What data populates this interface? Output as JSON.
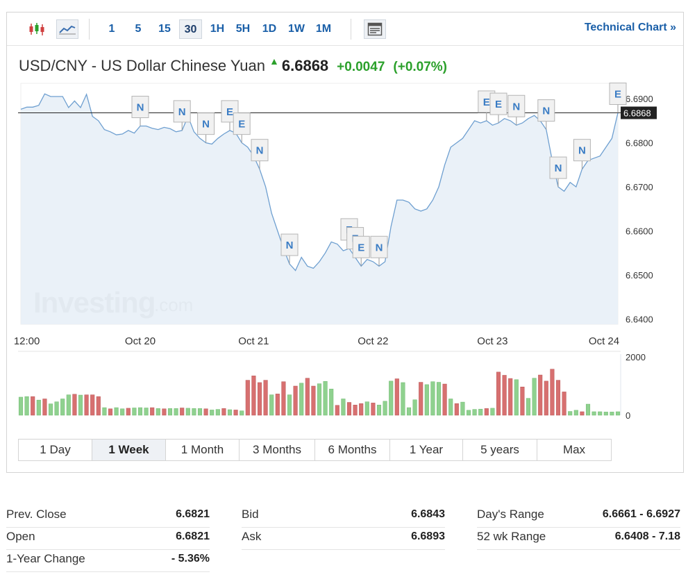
{
  "toolbar": {
    "candle_icon": "candlestick-icon",
    "line_icon": "line-chart-icon",
    "timeframes": [
      "1",
      "5",
      "15",
      "30",
      "1H",
      "5H",
      "1D",
      "1W",
      "1M"
    ],
    "active_timeframe": "30",
    "table_icon": "table-icon",
    "technical_link": "Technical Chart »"
  },
  "quote": {
    "name": "USD/CNY - US Dollar Chinese Yuan",
    "direction_icon": "up-arrow-icon",
    "price": "6.6868",
    "change": "+0.0047",
    "change_pct": "(+0.07%)"
  },
  "watermark": {
    "brand": "Investing",
    "suffix": ".com"
  },
  "chart_data": {
    "type": "area",
    "y_ticks": [
      "6.6900",
      "6.6800",
      "6.6700",
      "6.6600",
      "6.6500",
      "6.6400"
    ],
    "y_tick_values": [
      6.69,
      6.68,
      6.67,
      6.66,
      6.65,
      6.64
    ],
    "ylim": [
      6.6388,
      6.6935
    ],
    "current_value": 6.6868,
    "current_label": "6.6868",
    "x_ticks": [
      "12:00",
      "Oct 20",
      "Oct 21",
      "Oct 22",
      "Oct 23",
      "Oct 24"
    ],
    "x_tick_index": [
      1,
      20,
      39,
      59,
      79,
      99
    ],
    "values": [
      6.6876,
      6.6881,
      6.6881,
      6.6885,
      6.6911,
      6.6905,
      6.6905,
      6.6905,
      6.688,
      6.6895,
      6.688,
      6.691,
      6.686,
      6.685,
      6.683,
      6.6825,
      6.6818,
      6.682,
      6.6828,
      6.6822,
      6.6838,
      6.6838,
      6.6833,
      6.683,
      6.6835,
      6.6832,
      6.6825,
      6.6828,
      6.686,
      6.6825,
      6.681,
      6.68,
      6.6797,
      6.681,
      6.682,
      6.6828,
      6.6822,
      6.68,
      6.679,
      6.677,
      6.674,
      6.67,
      6.664,
      6.66,
      6.656,
      6.6525,
      6.651,
      6.654,
      6.652,
      6.6515,
      6.653,
      6.655,
      6.6575,
      6.657,
      6.6555,
      6.656,
      6.654,
      6.652,
      6.6535,
      6.653,
      6.652,
      6.653,
      6.661,
      6.667,
      6.667,
      6.6665,
      6.665,
      6.6645,
      6.665,
      6.667,
      6.67,
      6.675,
      6.679,
      6.68,
      6.681,
      6.683,
      6.685,
      6.6845,
      6.685,
      6.684,
      6.6845,
      6.6855,
      6.685,
      6.684,
      6.6845,
      6.6855,
      6.6862,
      6.685,
      6.683,
      6.676,
      6.67,
      6.669,
      6.671,
      6.67,
      6.674,
      6.676,
      6.6765,
      6.677,
      6.679,
      6.681,
      6.6868
    ],
    "events": [
      {
        "label": "N",
        "i": 20
      },
      {
        "label": "N",
        "i": 27
      },
      {
        "label": "N",
        "i": 31
      },
      {
        "label": "E",
        "i": 35
      },
      {
        "label": "E",
        "i": 37
      },
      {
        "label": "N",
        "i": 40
      },
      {
        "label": "N",
        "i": 45
      },
      {
        "label": "E",
        "i": 55
      },
      {
        "label": "E",
        "i": 56
      },
      {
        "label": "E",
        "i": 57
      },
      {
        "label": "N",
        "i": 60
      },
      {
        "label": "E",
        "i": 78
      },
      {
        "label": "E",
        "i": 80
      },
      {
        "label": "N",
        "i": 83
      },
      {
        "label": "N",
        "i": 88
      },
      {
        "label": "N",
        "i": 90
      },
      {
        "label": "N",
        "i": 94
      },
      {
        "label": "E",
        "i": 100
      }
    ],
    "volume": {
      "y_ticks": [
        "2000",
        "0"
      ],
      "y_tick_values": [
        2000,
        0
      ],
      "values": [
        620,
        640,
        640,
        520,
        560,
        390,
        460,
        560,
        700,
        720,
        690,
        700,
        700,
        640,
        260,
        220,
        260,
        220,
        240,
        250,
        260,
        250,
        260,
        230,
        220,
        230,
        230,
        250,
        240,
        230,
        230,
        220,
        180,
        200,
        230,
        190,
        180,
        150,
        1200,
        1350,
        1120,
        1200,
        700,
        730,
        1150,
        700,
        1000,
        1100,
        1270,
        1000,
        1080,
        1160,
        900,
        340,
        560,
        440,
        350,
        400,
        460,
        420,
        350,
        480,
        1170,
        1250,
        1120,
        260,
        530,
        1130,
        1050,
        1150,
        1130,
        1070,
        560,
        400,
        450,
        170,
        200,
        210,
        230,
        240,
        1480,
        1370,
        1260,
        1220,
        970,
        580,
        1270,
        1380,
        1170,
        1580,
        1200,
        800,
        130,
        170,
        120,
        380,
        120,
        120,
        110,
        110,
        120
      ],
      "up": [
        1,
        1,
        0,
        1,
        0,
        1,
        1,
        1,
        1,
        0,
        1,
        0,
        0,
        0,
        1,
        0,
        1,
        1,
        0,
        1,
        1,
        1,
        0,
        1,
        0,
        1,
        1,
        0,
        1,
        1,
        1,
        0,
        1,
        1,
        0,
        1,
        0,
        1,
        0,
        0,
        0,
        0,
        1,
        0,
        0,
        1,
        0,
        1,
        0,
        0,
        1,
        1,
        1,
        0,
        1,
        0,
        0,
        0,
        1,
        0,
        1,
        1,
        1,
        0,
        1,
        1,
        1,
        0,
        1,
        1,
        1,
        0,
        1,
        0,
        1,
        1,
        1,
        1,
        0,
        1,
        0,
        0,
        0,
        1,
        0,
        1,
        1,
        0,
        0,
        0,
        0,
        0,
        1,
        1,
        0,
        1,
        1,
        1,
        1,
        1,
        1
      ]
    }
  },
  "ranges": {
    "items": [
      "1 Day",
      "1 Week",
      "1 Month",
      "3 Months",
      "6 Months",
      "1 Year",
      "5 years",
      "Max"
    ],
    "active": "1 Week"
  },
  "stats": {
    "col1": [
      {
        "label": "Prev. Close",
        "value": "6.6821"
      },
      {
        "label": "Open",
        "value": "6.6821"
      },
      {
        "label": "1-Year Change",
        "value": "- 5.36%"
      }
    ],
    "col2": [
      {
        "label": "Bid",
        "value": "6.6843"
      },
      {
        "label": "Ask",
        "value": "6.6893"
      }
    ],
    "col3": [
      {
        "label": "Day's Range",
        "value": "6.6661 - 6.6927"
      },
      {
        "label": "52 wk Range",
        "value": "6.6408 - 7.18"
      }
    ]
  },
  "colors": {
    "accent": "#1a5fa8",
    "up": "#2ba02b",
    "line": "#6e9fd0",
    "area": "#e6eef7",
    "vol_up": "#8fd18f",
    "vol_down": "#d77070"
  }
}
